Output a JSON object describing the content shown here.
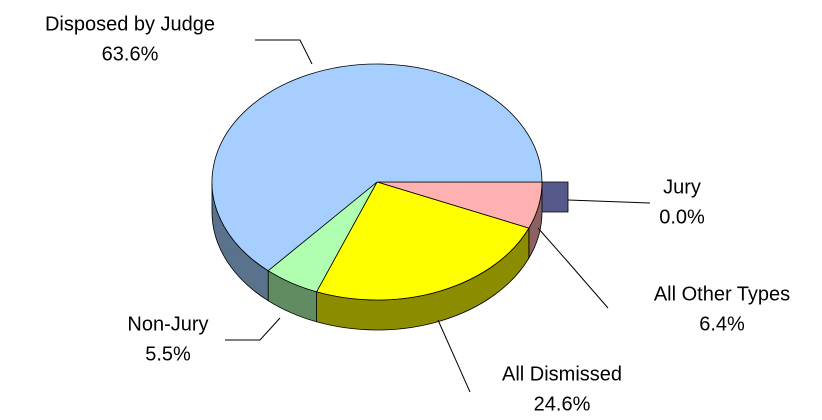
{
  "chart_data": {
    "type": "pie3d",
    "categories": [
      "Jury",
      "All Other Types",
      "All Dismissed",
      "Non-Jury",
      "Disposed by Judge"
    ],
    "values": [
      0.0,
      6.4,
      24.6,
      5.5,
      63.6
    ],
    "value_labels": [
      "0.0%",
      "6.4%",
      "24.6%",
      "5.5%",
      "63.6%"
    ],
    "colors": [
      "#555a8a",
      "#ffb0b0",
      "#ffff00",
      "#b0ffb0",
      "#a6cfff"
    ]
  }
}
